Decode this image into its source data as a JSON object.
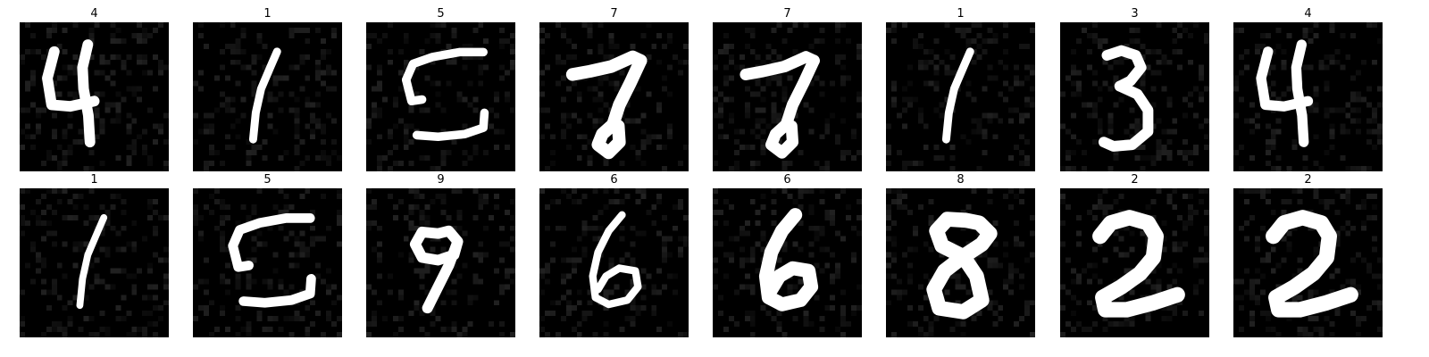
{
  "figure": {
    "background": "#ffffff",
    "image_background": "#000000",
    "stroke_color": "#ffffff",
    "samples": [
      {
        "label": "4",
        "glyph": "handwritten-digit-4"
      },
      {
        "label": "1",
        "glyph": "handwritten-digit-1"
      },
      {
        "label": "5",
        "glyph": "handwritten-digit-5"
      },
      {
        "label": "7",
        "glyph": "handwritten-digit-7"
      },
      {
        "label": "7",
        "glyph": "handwritten-digit-7"
      },
      {
        "label": "1",
        "glyph": "handwritten-digit-1"
      },
      {
        "label": "3",
        "glyph": "handwritten-digit-3"
      },
      {
        "label": "4",
        "glyph": "handwritten-digit-4"
      },
      {
        "label": "1",
        "glyph": "handwritten-digit-1"
      },
      {
        "label": "5",
        "glyph": "handwritten-digit-5"
      },
      {
        "label": "9",
        "glyph": "handwritten-digit-9"
      },
      {
        "label": "6",
        "glyph": "handwritten-digit-6"
      },
      {
        "label": "6",
        "glyph": "handwritten-digit-6"
      },
      {
        "label": "8",
        "glyph": "handwritten-digit-8"
      },
      {
        "label": "2",
        "glyph": "handwritten-digit-2"
      },
      {
        "label": "2",
        "glyph": "handwritten-digit-2"
      }
    ]
  }
}
